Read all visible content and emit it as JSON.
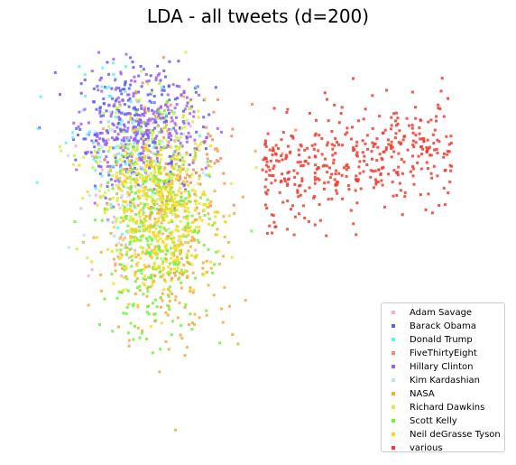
{
  "chart_data": {
    "type": "scatter",
    "title": "LDA - all tweets (d=200)",
    "xlabel": "",
    "ylabel": "",
    "grid": false,
    "axes_visible": false,
    "legend_position": "lower-right",
    "series": [
      {
        "name": "Adam Savage",
        "color": "#f4a9d6",
        "count": 60,
        "center": [
          -1.9,
          0.6
        ],
        "spread": [
          0.9,
          1.6
        ],
        "mark_label": "Adam Savage sample points"
      },
      {
        "name": "Barack Obama",
        "color": "#5a5cf5",
        "count": 260,
        "center": [
          -1.7,
          3.8
        ],
        "spread": [
          0.9,
          1.2
        ],
        "mark_label": "Barack Obama sample points"
      },
      {
        "name": "Donald Trump",
        "color": "#5ef1f7",
        "count": 90,
        "center": [
          -2.2,
          3.5
        ],
        "spread": [
          1.0,
          1.5
        ],
        "mark_label": "Donald Trump sample points"
      },
      {
        "name": "FiveThirtyEight",
        "color": "#f58a5a",
        "count": 70,
        "center": [
          -0.4,
          2.2
        ],
        "spread": [
          1.2,
          1.4
        ],
        "mark_label": "FiveThirtyEight sample points"
      },
      {
        "name": "Hillary Clinton",
        "color": "#a75cf0",
        "count": 260,
        "center": [
          -1.5,
          3.4
        ],
        "spread": [
          0.9,
          1.1
        ],
        "mark_label": "Hillary Clinton sample points"
      },
      {
        "name": "Kim Kardashian",
        "color": "#b9e3ef",
        "count": 80,
        "center": [
          -1.6,
          1.5
        ],
        "spread": [
          0.9,
          1.4
        ],
        "mark_label": "Kim Kardashian sample points"
      },
      {
        "name": "NASA",
        "color": "#f7a93a",
        "count": 260,
        "center": [
          -0.6,
          -0.9
        ],
        "spread": [
          1.0,
          2.1
        ],
        "mark_label": "NASA sample points"
      },
      {
        "name": "Richard Dawkins",
        "color": "#cdf53a",
        "count": 240,
        "center": [
          -1.3,
          1.6
        ],
        "spread": [
          0.9,
          1.5
        ],
        "mark_label": "Richard Dawkins sample points"
      },
      {
        "name": "Scott Kelly",
        "color": "#6cf53a",
        "count": 280,
        "center": [
          -1.1,
          -0.5
        ],
        "spread": [
          0.8,
          2.0
        ],
        "mark_label": "Scott Kelly sample points"
      },
      {
        "name": "Neil deGrasse Tyson",
        "color": "#f5da1a",
        "count": 360,
        "center": [
          -1.0,
          0.4
        ],
        "spread": [
          0.8,
          1.5
        ],
        "mark_label": "Neil deGrasse Tyson sample points"
      },
      {
        "name": "various",
        "color": "#f03a2a",
        "count": 420,
        "center": [
          3.8,
          2.2
        ],
        "spread": [
          2.6,
          1.0
        ],
        "mark_label": "various sample points"
      }
    ],
    "xlim": [
      -5.0,
      9.0
    ],
    "ylim": [
      -9.0,
      7.0
    ]
  }
}
